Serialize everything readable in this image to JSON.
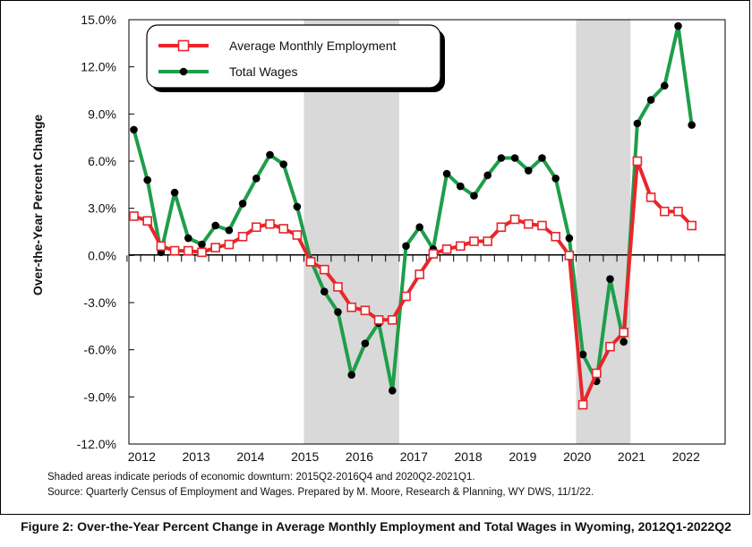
{
  "chart_data": {
    "type": "line",
    "title": "",
    "xlabel": "",
    "ylabel": "Over-the-Year Percent Change",
    "ylim": [
      -12,
      15
    ],
    "y_ticks": [
      "15.0%",
      "12.0%",
      "9.0%",
      "6.0%",
      "3.0%",
      "0.0%",
      "-3.0%",
      "-6.0%",
      "-9.0%",
      "-12.0%"
    ],
    "year_labels": [
      "2012",
      "2013",
      "2014",
      "2015",
      "2016",
      "2017",
      "2018",
      "2019",
      "2020",
      "2021",
      "2022"
    ],
    "x_start_year": 2012,
    "quarters": [
      "2012Q1",
      "2012Q2",
      "2012Q3",
      "2012Q4",
      "2013Q1",
      "2013Q2",
      "2013Q3",
      "2013Q4",
      "2014Q1",
      "2014Q2",
      "2014Q3",
      "2014Q4",
      "2015Q1",
      "2015Q2",
      "2015Q3",
      "2015Q4",
      "2016Q1",
      "2016Q2",
      "2016Q3",
      "2016Q4",
      "2017Q1",
      "2017Q2",
      "2017Q3",
      "2017Q4",
      "2018Q1",
      "2018Q2",
      "2018Q3",
      "2018Q4",
      "2019Q1",
      "2019Q2",
      "2019Q3",
      "2019Q4",
      "2020Q1",
      "2020Q2",
      "2020Q3",
      "2020Q4",
      "2021Q1",
      "2021Q2",
      "2021Q3",
      "2021Q4",
      "2022Q1",
      "2022Q2"
    ],
    "shaded_periods": [
      {
        "start": "2015Q2",
        "end": "2016Q4"
      },
      {
        "start": "2020Q2",
        "end": "2021Q1"
      }
    ],
    "legend_position": "top-left",
    "grid": false,
    "series": [
      {
        "name": "Average Monthly Employment",
        "color": "#e8262b",
        "marker": "open-square",
        "values": [
          2.5,
          2.2,
          0.6,
          0.3,
          0.3,
          0.2,
          0.5,
          0.7,
          1.2,
          1.8,
          2.0,
          1.7,
          1.3,
          -0.4,
          -0.9,
          -2.0,
          -3.3,
          -3.5,
          -4.1,
          -4.1,
          -2.6,
          -1.2,
          0.1,
          0.4,
          0.6,
          0.9,
          0.9,
          1.8,
          2.3,
          2.0,
          1.9,
          1.2,
          0.0,
          -9.5,
          -7.5,
          -5.8,
          -4.9,
          6.0,
          3.7,
          2.8,
          2.8,
          1.9
        ]
      },
      {
        "name": "Total Wages",
        "color": "#1e9e4a",
        "marker": "filled-circle",
        "values": [
          8.0,
          4.8,
          0.2,
          4.0,
          1.1,
          0.7,
          1.9,
          1.6,
          3.3,
          4.9,
          6.4,
          5.8,
          3.1,
          -0.3,
          -2.3,
          -3.6,
          -7.6,
          -5.6,
          -4.3,
          -8.6,
          0.6,
          1.8,
          0.4,
          5.2,
          4.4,
          3.8,
          5.1,
          6.2,
          6.2,
          5.4,
          6.2,
          4.9,
          1.1,
          -6.3,
          -8.0,
          -1.5,
          -5.5,
          8.4,
          9.9,
          10.8,
          14.6,
          8.3
        ]
      }
    ]
  },
  "notes": {
    "line1": "Shaded areas indicate periods of economic downturn: 2015Q2-2016Q4 and 2020Q2-2021Q1.",
    "line2": "Source: Quarterly Census of Employment and Wages. Prepared by M. Moore, Research & Planning, WY DWS, 11/1/22."
  },
  "caption": "Figure 2: Over-the-Year Percent Change in Average Monthly Employment and Total Wages in Wyoming, 2012Q1-2022Q2"
}
